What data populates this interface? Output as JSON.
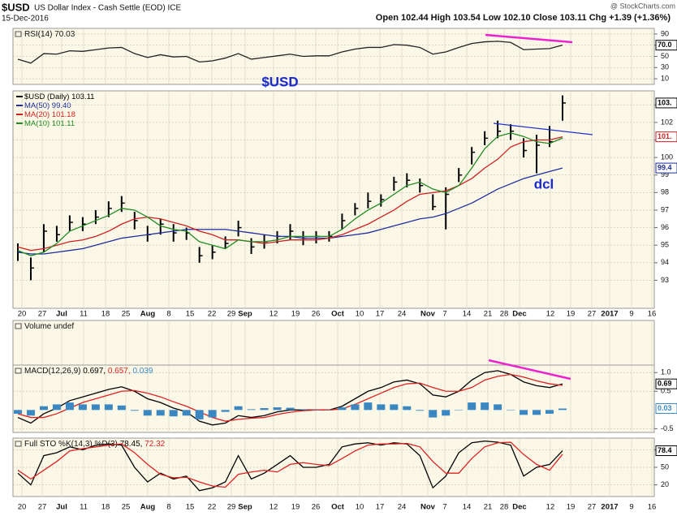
{
  "header": {
    "symbol": "$USD",
    "name": "US Dollar Index - Cash Settle (EOD) ICE",
    "date": "15-Dec-2016",
    "quote": "Open 102.44 High 103.54 Low 102.10 Close 103.11 Chg +1.39 (+1.36%)",
    "watermark": "@ StockCharts.com"
  },
  "x_labels": [
    "20",
    "27",
    "Jul",
    "11",
    "18",
    "25",
    "Aug",
    "8",
    "15",
    "22",
    "29",
    "Sep",
    "12",
    "19",
    "26",
    "Oct",
    "10",
    "17",
    "24",
    "Nov",
    "7",
    "14",
    "21",
    "28",
    "Dec",
    "12",
    "19",
    "27",
    "2017",
    "9",
    "16"
  ],
  "chart_data": [
    {
      "type": "line",
      "ylim": [
        0,
        100
      ],
      "yticks": [
        10,
        30,
        50,
        70,
        90
      ],
      "grid": true,
      "series": [
        {
          "name": "RSI(14)",
          "legend_value": "70.03",
          "tag": "70.0",
          "color": "#222222",
          "values": [
            45,
            38,
            55,
            54,
            60,
            59,
            62,
            65,
            66,
            55,
            48,
            53,
            49,
            50,
            40,
            42,
            47,
            55,
            45,
            48,
            51,
            54,
            50,
            51,
            51,
            58,
            63,
            66,
            66,
            71,
            70,
            66,
            54,
            58,
            66,
            73,
            76,
            77,
            75,
            62,
            63,
            64,
            70.03
          ]
        }
      ]
    },
    {
      "type": "ohlc",
      "ylim": [
        91.4,
        103.8
      ],
      "yticks": [
        93,
        94,
        95,
        96,
        97,
        98,
        99,
        100,
        101,
        102,
        103
      ],
      "grid": true,
      "annotations": [
        "$USD",
        "dcl"
      ],
      "price": {
        "name": "$USD (Daily)",
        "legend_value": "103.11",
        "tag": "103.",
        "color": "#000000",
        "high": [
          95.1,
          94.3,
          96.2,
          96.1,
          96.7,
          96.6,
          97.0,
          97.5,
          97.8,
          96.9,
          96.1,
          96.5,
          96.2,
          96.0,
          94.9,
          95.0,
          95.5,
          96.4,
          95.4,
          95.6,
          95.8,
          96.2,
          95.8,
          95.8,
          95.8,
          96.8,
          97.4,
          98.0,
          97.9,
          98.9,
          99.1,
          98.8,
          97.9,
          98.3,
          99.4,
          100.6,
          101.5,
          102.1,
          101.9,
          101.1,
          101.3,
          101.8,
          103.54
        ],
        "low": [
          94.1,
          93.0,
          94.6,
          95.2,
          95.8,
          95.8,
          96.2,
          96.6,
          96.9,
          95.9,
          95.2,
          95.6,
          95.2,
          95.3,
          94.0,
          94.2,
          94.8,
          95.5,
          94.5,
          94.8,
          95.1,
          95.3,
          95.0,
          95.1,
          95.2,
          95.9,
          96.7,
          97.1,
          97.2,
          98.1,
          98.3,
          98.0,
          97.0,
          95.9,
          98.6,
          99.6,
          100.7,
          101.1,
          101.0,
          100.0,
          99.1,
          100.6,
          102.1
        ],
        "close": [
          94.6,
          93.7,
          95.8,
          95.6,
          96.3,
          96.2,
          96.6,
          97.1,
          97.4,
          96.4,
          95.6,
          96.2,
          95.7,
          95.7,
          94.4,
          94.6,
          95.1,
          96.0,
          94.9,
          95.2,
          95.5,
          95.8,
          95.4,
          95.5,
          95.5,
          96.4,
          97.1,
          97.5,
          97.6,
          98.6,
          98.7,
          98.4,
          97.2,
          97.9,
          99.0,
          100.3,
          101.1,
          101.5,
          101.5,
          100.4,
          100.7,
          100.9,
          103.11
        ]
      },
      "series": [
        {
          "name": "MA(50)",
          "legend_value": "99.40",
          "tag": "99.4",
          "color": "#1f2f9c",
          "values": [
            94.6,
            94.5,
            94.5,
            94.6,
            94.7,
            94.8,
            95.0,
            95.2,
            95.4,
            95.5,
            95.6,
            95.7,
            95.8,
            95.9,
            95.9,
            95.9,
            95.9,
            95.8,
            95.7,
            95.6,
            95.5,
            95.5,
            95.4,
            95.4,
            95.4,
            95.5,
            95.6,
            95.7,
            95.9,
            96.1,
            96.3,
            96.5,
            96.6,
            96.8,
            97.1,
            97.4,
            97.8,
            98.2,
            98.5,
            98.8,
            99.0,
            99.2,
            99.4
          ]
        },
        {
          "name": "MA(20)",
          "legend_value": "101.18",
          "tag": "101.",
          "color": "#cc2222",
          "values": [
            94.9,
            94.7,
            94.8,
            95.0,
            95.2,
            95.3,
            95.5,
            95.8,
            96.2,
            96.5,
            96.6,
            96.5,
            96.3,
            96.1,
            95.8,
            95.6,
            95.3,
            95.3,
            95.2,
            95.1,
            95.2,
            95.3,
            95.3,
            95.3,
            95.4,
            95.6,
            95.9,
            96.2,
            96.6,
            97.0,
            97.5,
            97.9,
            98.0,
            98.1,
            98.4,
            98.8,
            99.4,
            99.9,
            100.6,
            100.9,
            101.0,
            101.0,
            101.18
          ]
        },
        {
          "name": "MA(10)",
          "legend_value": "101.11",
          "color": "#228b22",
          "values": [
            94.7,
            94.4,
            94.6,
            95.1,
            95.8,
            96.1,
            96.4,
            96.7,
            97.1,
            97.0,
            96.6,
            96.1,
            95.9,
            95.8,
            95.2,
            95.0,
            94.8,
            95.3,
            95.2,
            95.2,
            95.3,
            95.5,
            95.5,
            95.5,
            95.5,
            95.9,
            96.5,
            97.0,
            97.4,
            97.9,
            98.4,
            98.6,
            98.2,
            98.0,
            98.4,
            99.4,
            100.5,
            101.2,
            101.4,
            101.2,
            100.9,
            100.8,
            101.11
          ]
        }
      ]
    },
    {
      "type": "bar",
      "title": "Volume undef"
    },
    {
      "type": "line",
      "title": "MACD(12,26,9)",
      "ylim": [
        -0.6,
        1.2
      ],
      "yticks": [
        {
          "value": 1,
          "label": "1.0"
        },
        0.5,
        -0.5
      ],
      "grid": true,
      "series": [
        {
          "legend_value": "0.697,",
          "tag": "0.69",
          "color": "#000000",
          "values": [
            -0.2,
            -0.35,
            -0.1,
            0.05,
            0.25,
            0.35,
            0.45,
            0.55,
            0.62,
            0.5,
            0.3,
            0.2,
            0.05,
            -0.05,
            -0.3,
            -0.4,
            -0.35,
            -0.15,
            -0.2,
            -0.15,
            -0.05,
            0.0,
            0.0,
            0.0,
            0.0,
            0.1,
            0.3,
            0.5,
            0.6,
            0.75,
            0.8,
            0.7,
            0.4,
            0.35,
            0.5,
            0.8,
            1.0,
            1.05,
            0.95,
            0.75,
            0.65,
            0.6,
            0.697
          ]
        },
        {
          "legend_value": "0.657,",
          "color": "#dd2222",
          "values": [
            -0.1,
            -0.2,
            -0.2,
            -0.1,
            0.05,
            0.2,
            0.3,
            0.4,
            0.5,
            0.52,
            0.45,
            0.35,
            0.22,
            0.1,
            -0.05,
            -0.2,
            -0.3,
            -0.25,
            -0.22,
            -0.2,
            -0.12,
            -0.06,
            -0.02,
            0.0,
            0.0,
            0.03,
            0.15,
            0.3,
            0.45,
            0.6,
            0.7,
            0.72,
            0.6,
            0.5,
            0.5,
            0.6,
            0.8,
            0.9,
            0.95,
            0.88,
            0.78,
            0.7,
            0.657
          ]
        },
        {
          "type": "bar",
          "legend_value": "0.039",
          "tag": "0.03",
          "color": "#3a87c2",
          "values": [
            -0.1,
            -0.15,
            0.1,
            0.15,
            0.2,
            0.15,
            0.15,
            0.15,
            0.12,
            -0.02,
            -0.15,
            -0.15,
            -0.17,
            -0.15,
            -0.25,
            -0.2,
            -0.05,
            0.1,
            0.02,
            0.05,
            0.07,
            0.06,
            0.02,
            0,
            0,
            0.07,
            0.15,
            0.2,
            0.15,
            0.15,
            0.1,
            -0.02,
            -0.2,
            -0.15,
            0,
            0.2,
            0.2,
            0.15,
            0,
            -0.13,
            -0.13,
            -0.1,
            0.039
          ]
        }
      ]
    },
    {
      "type": "line",
      "title": "Full STO %K(14,3) %D(3)",
      "ylim": [
        0,
        100
      ],
      "yticks": [
        20,
        50,
        80
      ],
      "grid": true,
      "series": [
        {
          "legend_value": "78.45,",
          "tag": "78.4",
          "color": "#000000",
          "values": [
            40,
            20,
            70,
            75,
            85,
            80,
            88,
            90,
            88,
            50,
            25,
            40,
            30,
            35,
            10,
            15,
            25,
            70,
            30,
            40,
            55,
            70,
            50,
            50,
            55,
            85,
            90,
            92,
            88,
            92,
            90,
            70,
            15,
            35,
            75,
            92,
            95,
            93,
            88,
            35,
            50,
            55,
            78.45
          ]
        },
        {
          "legend_value": "72.32",
          "color": "#dd2222",
          "values": [
            45,
            30,
            45,
            60,
            78,
            82,
            85,
            88,
            90,
            75,
            55,
            38,
            32,
            33,
            25,
            18,
            16,
            38,
            42,
            45,
            42,
            55,
            58,
            55,
            53,
            65,
            78,
            88,
            90,
            90,
            91,
            85,
            60,
            40,
            40,
            65,
            85,
            92,
            93,
            72,
            55,
            45,
            72.32
          ]
        }
      ]
    }
  ]
}
